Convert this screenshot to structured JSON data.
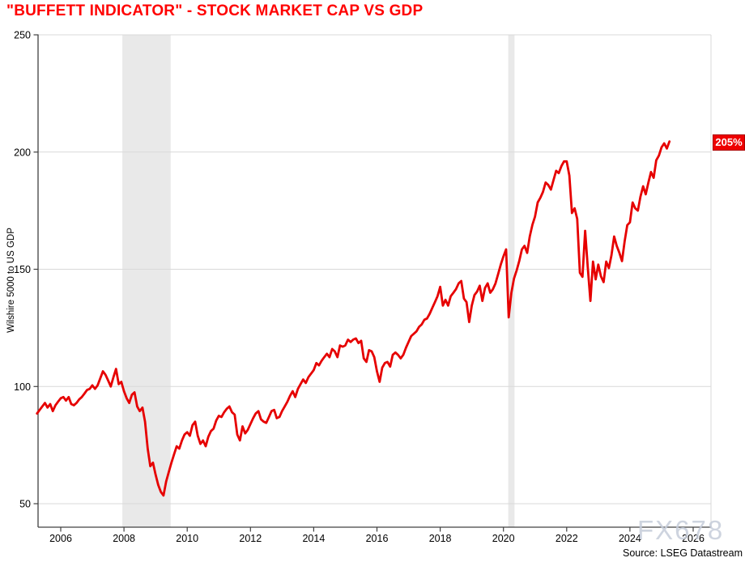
{
  "title": {
    "text": "\"BUFFETT INDICATOR\" - STOCK MARKET CAP VS GDP",
    "color": "#ff0000"
  },
  "watermark": {
    "text": "FX678"
  },
  "source": {
    "text": "Source: LSEG Datastream"
  },
  "annotation": {
    "text": "205%",
    "background": "#ee0000",
    "text_color": "#ffffff"
  },
  "chart_data": {
    "type": "line",
    "title": "\"BUFFETT INDICATOR\" - STOCK MARKET CAP VS GDP",
    "xlabel": "",
    "ylabel": "Wilshire 5000 to US GDP",
    "x_ticks": [
      2006,
      2008,
      2010,
      2012,
      2014,
      2016,
      2018,
      2020,
      2022,
      2024,
      2026
    ],
    "y_ticks": [
      50,
      100,
      150,
      200,
      250
    ],
    "xlim": [
      2005.25,
      2026.55
    ],
    "ylim": [
      40,
      250
    ],
    "grid": "horizontal-light-gray",
    "legend_position": "none",
    "last_value_label": "205%",
    "line_color": "#e60000",
    "recession_band_color": "#e9e9e9",
    "recession_bands": [
      [
        2007.95,
        2009.48
      ],
      [
        2020.15,
        2020.35
      ]
    ],
    "series": [
      {
        "name": "Wilshire 5000 to US GDP (%)",
        "color": "#e60000",
        "x_start": 2005.25,
        "x_step_years": 0.0833333,
        "values": [
          88.5,
          90,
          91.5,
          93,
          91,
          92.5,
          89.5,
          92,
          93.5,
          95,
          95.5,
          94,
          95.5,
          92.5,
          92,
          93,
          94.5,
          95.5,
          97,
          98.5,
          99,
          100.5,
          99,
          100.5,
          103.5,
          106.5,
          105,
          102.5,
          100,
          104,
          107.5,
          101,
          102,
          98,
          95,
          93,
          96.5,
          97.5,
          91.5,
          89.5,
          91,
          85,
          73.5,
          66,
          67.5,
          62.5,
          58,
          55,
          53.5,
          59.5,
          63.5,
          67.5,
          71,
          74.5,
          73.5,
          77,
          79.5,
          80.5,
          79,
          83.5,
          85,
          79,
          75.5,
          77,
          74.5,
          78.5,
          81,
          82,
          85.5,
          87.5,
          87,
          89,
          90.5,
          91.5,
          89,
          88,
          79.5,
          77,
          83,
          80,
          81.5,
          84,
          86.5,
          88.5,
          89.5,
          86,
          85,
          84.5,
          87,
          89.5,
          90,
          86.5,
          87,
          89.5,
          91.5,
          93.5,
          96,
          98,
          95.5,
          99,
          101,
          103,
          101.5,
          104,
          105.5,
          107,
          110,
          109,
          111,
          112.5,
          114,
          112.5,
          116,
          115,
          112.5,
          117.5,
          117,
          117.5,
          120,
          119,
          120,
          120.5,
          118.5,
          119.5,
          112,
          110.5,
          115.5,
          115,
          112.5,
          106.5,
          102,
          108,
          110,
          110.5,
          108.5,
          113.5,
          114.5,
          113.5,
          112,
          113.5,
          116.5,
          119,
          121.5,
          122.5,
          123.5,
          125.5,
          126.5,
          128.5,
          129,
          131,
          133.5,
          136,
          138.5,
          142.5,
          134.5,
          137,
          134.5,
          138.5,
          140,
          141.5,
          144,
          145,
          137.5,
          136,
          127.5,
          134.5,
          139,
          140.5,
          143,
          136.5,
          142,
          144,
          140,
          141.5,
          144,
          148,
          152,
          155.5,
          158.5,
          129.5,
          140,
          146,
          149.5,
          153.5,
          158.5,
          160,
          157,
          164,
          169,
          172.5,
          178.5,
          180.5,
          183,
          187,
          186,
          184,
          188,
          192,
          191,
          194,
          196,
          196,
          190,
          174,
          176,
          171.5,
          148.5,
          146.8,
          166.4,
          151,
          136.5,
          153.3,
          145.7,
          152,
          147,
          144.5,
          153.3,
          150.5,
          156,
          164,
          160,
          157,
          153.5,
          162,
          168.8,
          170,
          178.5,
          176,
          175,
          181,
          185.4,
          182,
          187,
          191.5,
          189,
          196.5,
          198.5,
          202,
          203.7,
          201.5,
          204.5
        ]
      }
    ]
  }
}
